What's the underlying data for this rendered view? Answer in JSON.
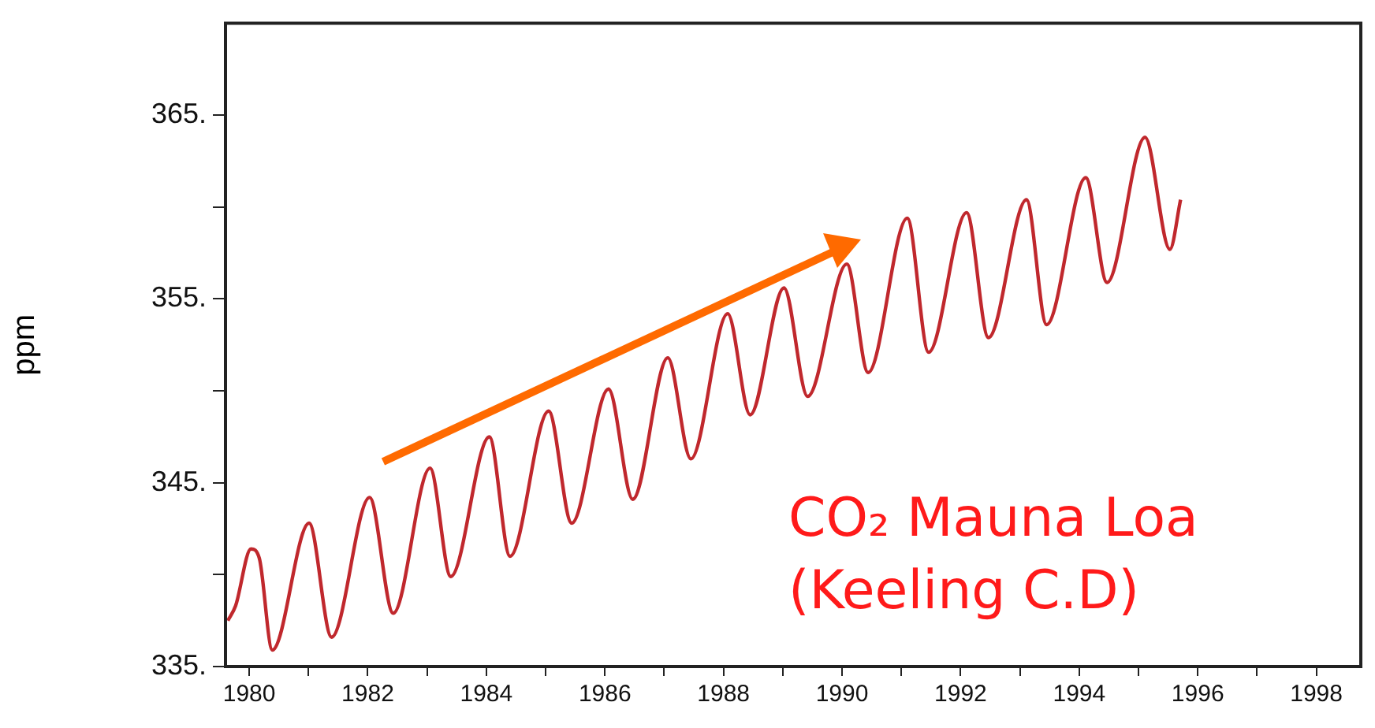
{
  "chart_data": {
    "type": "line",
    "ylabel": "ppm",
    "annotations": [
      "CO₂ Mauna Loa (Keeling C.D)"
    ],
    "xlim": [
      1979.6,
      1998.75
    ],
    "ylim": [
      335,
      370
    ],
    "xticks": [
      {
        "value": 1980,
        "label": "1980"
      },
      {
        "value": 1981,
        "label": null
      },
      {
        "value": 1982,
        "label": "1982"
      },
      {
        "value": 1983,
        "label": null
      },
      {
        "value": 1984,
        "label": "1984"
      },
      {
        "value": 1985,
        "label": null
      },
      {
        "value": 1986,
        "label": "1986"
      },
      {
        "value": 1987,
        "label": null
      },
      {
        "value": 1988,
        "label": "1988"
      },
      {
        "value": 1989,
        "label": null
      },
      {
        "value": 1990,
        "label": "1990"
      },
      {
        "value": 1991,
        "label": null
      },
      {
        "value": 1992,
        "label": "1992"
      },
      {
        "value": 1993,
        "label": null
      },
      {
        "value": 1994,
        "label": "1994"
      },
      {
        "value": 1995,
        "label": null
      },
      {
        "value": 1996,
        "label": "1996"
      },
      {
        "value": 1997,
        "label": null
      },
      {
        "value": 1998,
        "label": "1998"
      }
    ],
    "yticks": [
      {
        "value": 335,
        "label": "335."
      },
      {
        "value": 340,
        "label": null
      },
      {
        "value": 345,
        "label": "345."
      },
      {
        "value": 350,
        "label": null
      },
      {
        "value": 355,
        "label": "355."
      },
      {
        "value": 360,
        "label": null
      },
      {
        "value": 365,
        "label": "365."
      }
    ],
    "grid": false,
    "legend": false,
    "marker": "none",
    "line_style": "solid",
    "series": [
      {
        "color": "#c0282d",
        "x": [
          1979.64,
          1979.77,
          1980.03,
          1980.17,
          1980.39,
          1981.01,
          1981.39,
          1982.03,
          1982.43,
          1983.05,
          1983.4,
          1984.05,
          1984.4,
          1985.05,
          1985.44,
          1986.06,
          1986.47,
          1987.06,
          1987.45,
          1988.07,
          1988.45,
          1989.02,
          1989.42,
          1990.08,
          1990.44,
          1991.1,
          1991.46,
          1992.1,
          1992.47,
          1993.11,
          1993.45,
          1994.11,
          1994.47,
          1995.11,
          1995.53,
          1995.71
        ],
        "values": [
          337.5,
          338.3,
          341.4,
          340.9,
          335.9,
          342.8,
          336.6,
          344.2,
          337.9,
          345.8,
          339.9,
          347.5,
          341.0,
          348.9,
          342.8,
          350.1,
          344.1,
          351.8,
          346.3,
          354.2,
          348.7,
          355.6,
          349.7,
          356.9,
          351.0,
          359.4,
          352.1,
          359.7,
          352.9,
          360.4,
          353.6,
          361.6,
          355.9,
          363.8,
          357.7,
          360.4
        ]
      }
    ]
  }
}
